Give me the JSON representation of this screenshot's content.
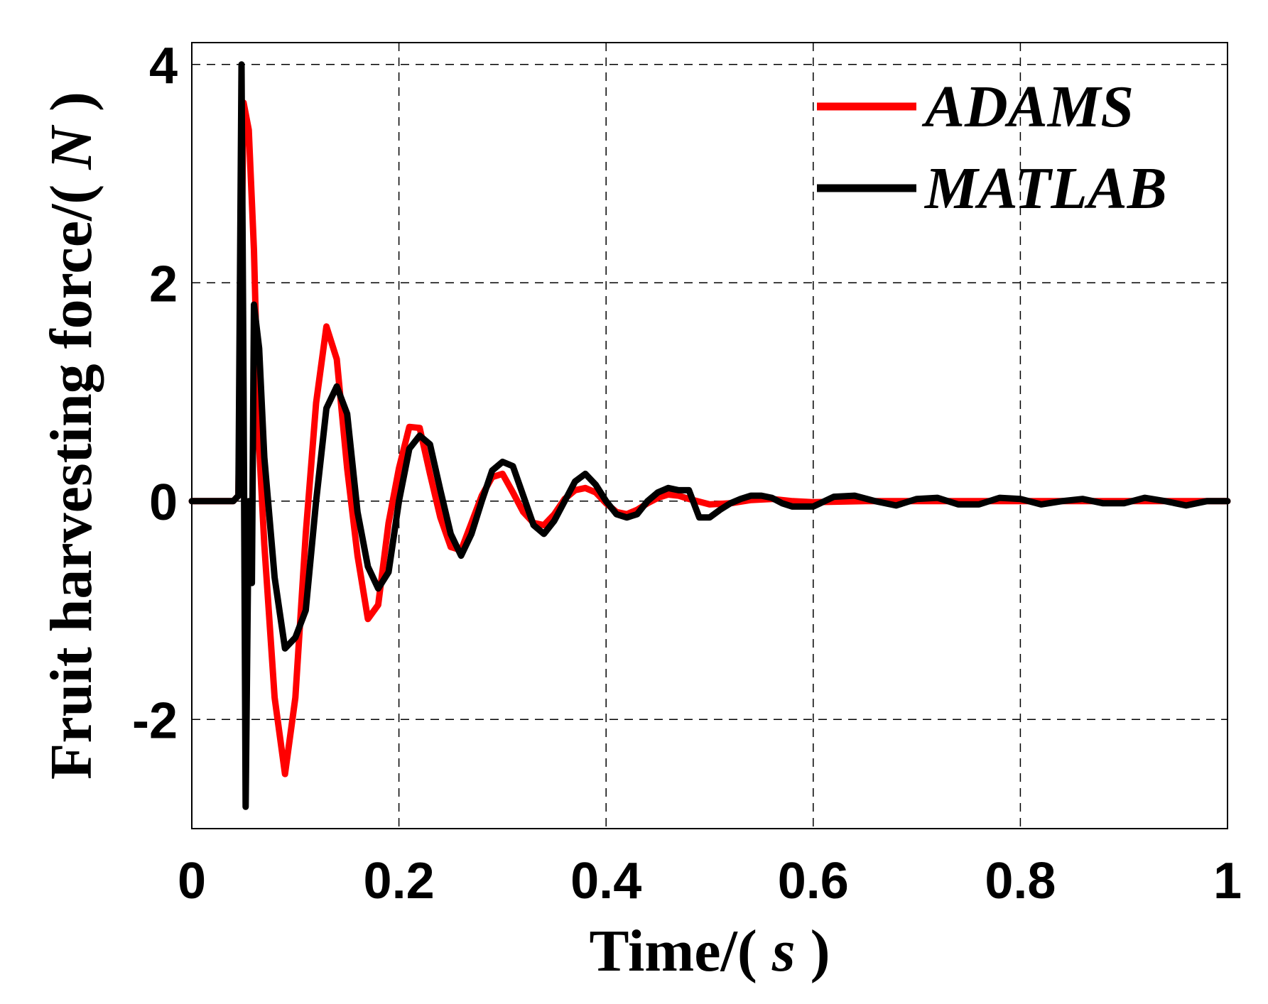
{
  "chart_data": {
    "type": "line",
    "title": "",
    "xlabel": {
      "prefix": "Time/( ",
      "unit": "s",
      "suffix": " )"
    },
    "ylabel": {
      "prefix": "Fruit harvesting force/( ",
      "unit": "N",
      "suffix": " )"
    },
    "xlim": [
      0,
      1
    ],
    "ylim": [
      -3,
      4.2
    ],
    "xticks": [
      0,
      0.2,
      0.4,
      0.6,
      0.8,
      1
    ],
    "xtick_labels": [
      "0",
      "0.2",
      "0.4",
      "0.6",
      "0.8",
      "1"
    ],
    "yticks": [
      -2,
      0,
      2,
      4
    ],
    "ytick_labels": [
      "-2",
      "0",
      "2",
      "4"
    ],
    "grid": true,
    "legend_position": "top-right",
    "series": [
      {
        "name": "ADAMS",
        "color": "#ff0000",
        "x": [
          0,
          0.04,
          0.045,
          0.05,
          0.055,
          0.06,
          0.065,
          0.07,
          0.08,
          0.09,
          0.1,
          0.11,
          0.12,
          0.13,
          0.14,
          0.15,
          0.16,
          0.17,
          0.18,
          0.19,
          0.2,
          0.21,
          0.22,
          0.23,
          0.24,
          0.25,
          0.26,
          0.27,
          0.28,
          0.29,
          0.3,
          0.31,
          0.32,
          0.33,
          0.34,
          0.35,
          0.36,
          0.37,
          0.38,
          0.39,
          0.4,
          0.41,
          0.42,
          0.43,
          0.44,
          0.45,
          0.46,
          0.47,
          0.48,
          0.5,
          0.52,
          0.54,
          0.56,
          0.58,
          0.6,
          0.65,
          0.7,
          0.8,
          0.9,
          1.0
        ],
        "y": [
          0,
          0,
          0.05,
          3.65,
          3.4,
          2.3,
          0.5,
          -0.4,
          -1.8,
          -2.5,
          -1.8,
          -0.3,
          0.9,
          1.6,
          1.3,
          0.3,
          -0.5,
          -1.08,
          -0.95,
          -0.2,
          0.3,
          0.68,
          0.67,
          0.25,
          -0.15,
          -0.42,
          -0.45,
          -0.2,
          0.05,
          0.22,
          0.25,
          0.08,
          -0.1,
          -0.2,
          -0.22,
          -0.12,
          0.02,
          0.1,
          0.12,
          0.08,
          -0.02,
          -0.1,
          -0.12,
          -0.08,
          -0.02,
          0.03,
          0.06,
          0.05,
          0.02,
          -0.03,
          -0.02,
          0.01,
          0.02,
          0.0,
          -0.01,
          0.0,
          0.0,
          0.0,
          0.0,
          0.0
        ]
      },
      {
        "name": "MATLAB",
        "color": "#000000",
        "x": [
          0,
          0.04,
          0.045,
          0.048,
          0.05,
          0.052,
          0.055,
          0.058,
          0.06,
          0.065,
          0.07,
          0.08,
          0.09,
          0.1,
          0.11,
          0.12,
          0.13,
          0.14,
          0.15,
          0.16,
          0.17,
          0.18,
          0.19,
          0.2,
          0.21,
          0.22,
          0.23,
          0.24,
          0.25,
          0.26,
          0.27,
          0.28,
          0.29,
          0.3,
          0.31,
          0.32,
          0.33,
          0.34,
          0.35,
          0.36,
          0.37,
          0.38,
          0.39,
          0.4,
          0.41,
          0.42,
          0.43,
          0.44,
          0.45,
          0.46,
          0.47,
          0.48,
          0.49,
          0.5,
          0.51,
          0.52,
          0.53,
          0.54,
          0.55,
          0.56,
          0.57,
          0.58,
          0.6,
          0.62,
          0.64,
          0.66,
          0.68,
          0.7,
          0.72,
          0.74,
          0.76,
          0.78,
          0.8,
          0.82,
          0.84,
          0.86,
          0.88,
          0.9,
          0.92,
          0.94,
          0.96,
          0.98,
          1.0
        ],
        "y": [
          0,
          0,
          0.05,
          4.0,
          1.0,
          -2.8,
          0.0,
          -0.75,
          1.8,
          1.4,
          0.4,
          -0.7,
          -1.35,
          -1.25,
          -1.0,
          0.0,
          0.85,
          1.05,
          0.8,
          -0.1,
          -0.6,
          -0.8,
          -0.65,
          0.0,
          0.48,
          0.6,
          0.52,
          0.1,
          -0.3,
          -0.5,
          -0.3,
          0.0,
          0.28,
          0.36,
          0.32,
          0.05,
          -0.22,
          -0.3,
          -0.18,
          0.0,
          0.18,
          0.25,
          0.15,
          0.0,
          -0.12,
          -0.15,
          -0.12,
          0.0,
          0.08,
          0.12,
          0.1,
          0.1,
          -0.15,
          -0.15,
          -0.08,
          -0.02,
          0.02,
          0.05,
          0.05,
          0.03,
          -0.02,
          -0.05,
          -0.05,
          0.04,
          0.05,
          0.0,
          -0.04,
          0.02,
          0.03,
          -0.03,
          -0.03,
          0.03,
          0.02,
          -0.03,
          0.0,
          0.02,
          -0.02,
          -0.02,
          0.03,
          0.0,
          -0.04,
          0.0,
          0.0
        ]
      }
    ]
  }
}
